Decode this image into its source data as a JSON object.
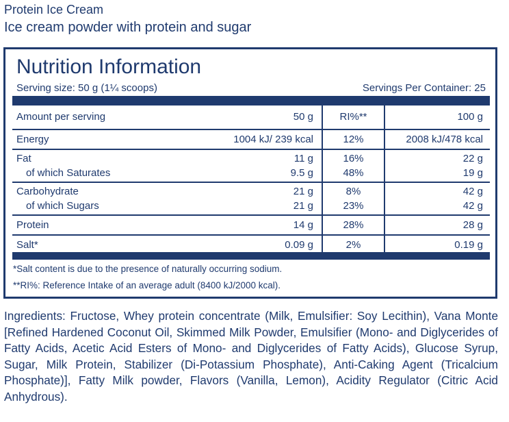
{
  "header": {
    "product_name": "Protein Ice Cream",
    "description": "Ice cream powder with protein and sugar"
  },
  "nutrition": {
    "title": "Nutrition Information",
    "serving_size": "Serving size: 50 g (1¼ scoops)",
    "servings_per_container": "Servings Per Container: 25",
    "columns": [
      "Amount per serving",
      "50 g",
      "RI%**",
      "100 g"
    ],
    "rows": [
      {
        "label": "Energy",
        "per_serving": "1004 kJ/ 239 kcal",
        "ri": "12%",
        "per_100g": "2008 kJ/478 kcal"
      },
      {
        "label": "Fat",
        "per_serving": "11 g",
        "ri": "16%",
        "per_100g": "22 g"
      },
      {
        "label": "of which Saturates",
        "per_serving": "9.5 g",
        "ri": "48%",
        "per_100g": "19 g"
      },
      {
        "label": "Carbohydrate",
        "per_serving": "21 g",
        "ri": "8%",
        "per_100g": "42 g"
      },
      {
        "label": "of which Sugars",
        "per_serving": "21 g",
        "ri": "23%",
        "per_100g": "42 g"
      },
      {
        "label": "Protein",
        "per_serving": "14 g",
        "ri": "28%",
        "per_100g": "28 g"
      },
      {
        "label": "Salt*",
        "per_serving": "0.09 g",
        "ri": "2%",
        "per_100g": "0.19 g"
      }
    ],
    "footnotes": [
      "*Salt content is due to the presence of naturally occurring sodium.",
      "**RI%: Reference Intake of an average adult (8400 kJ/2000 kcal)."
    ]
  },
  "ingredients": "Ingredients: Fructose, Whey protein concentrate (Milk, Emulsifier: Soy Lecithin), Vana Monte [Refined Hardened Coconut Oil, Skimmed Milk Powder, Emulsifier (Mono- and Diglycerides of Fatty Acids, Acetic Acid Esters of Mono- and Diglycerides of Fatty Acids), Glucose Syrup, Sugar, Milk Protein, Stabilizer (Di-Potassium Phosphate), Anti-Caking Agent (Tricalcium Phosphate)], Fatty Milk powder, Flavors (Vanilla, Lemon), Acidity Regulator (Citric Acid Anhydrous).",
  "colors": {
    "text": "#1f3a6e",
    "background": "#ffffff"
  }
}
